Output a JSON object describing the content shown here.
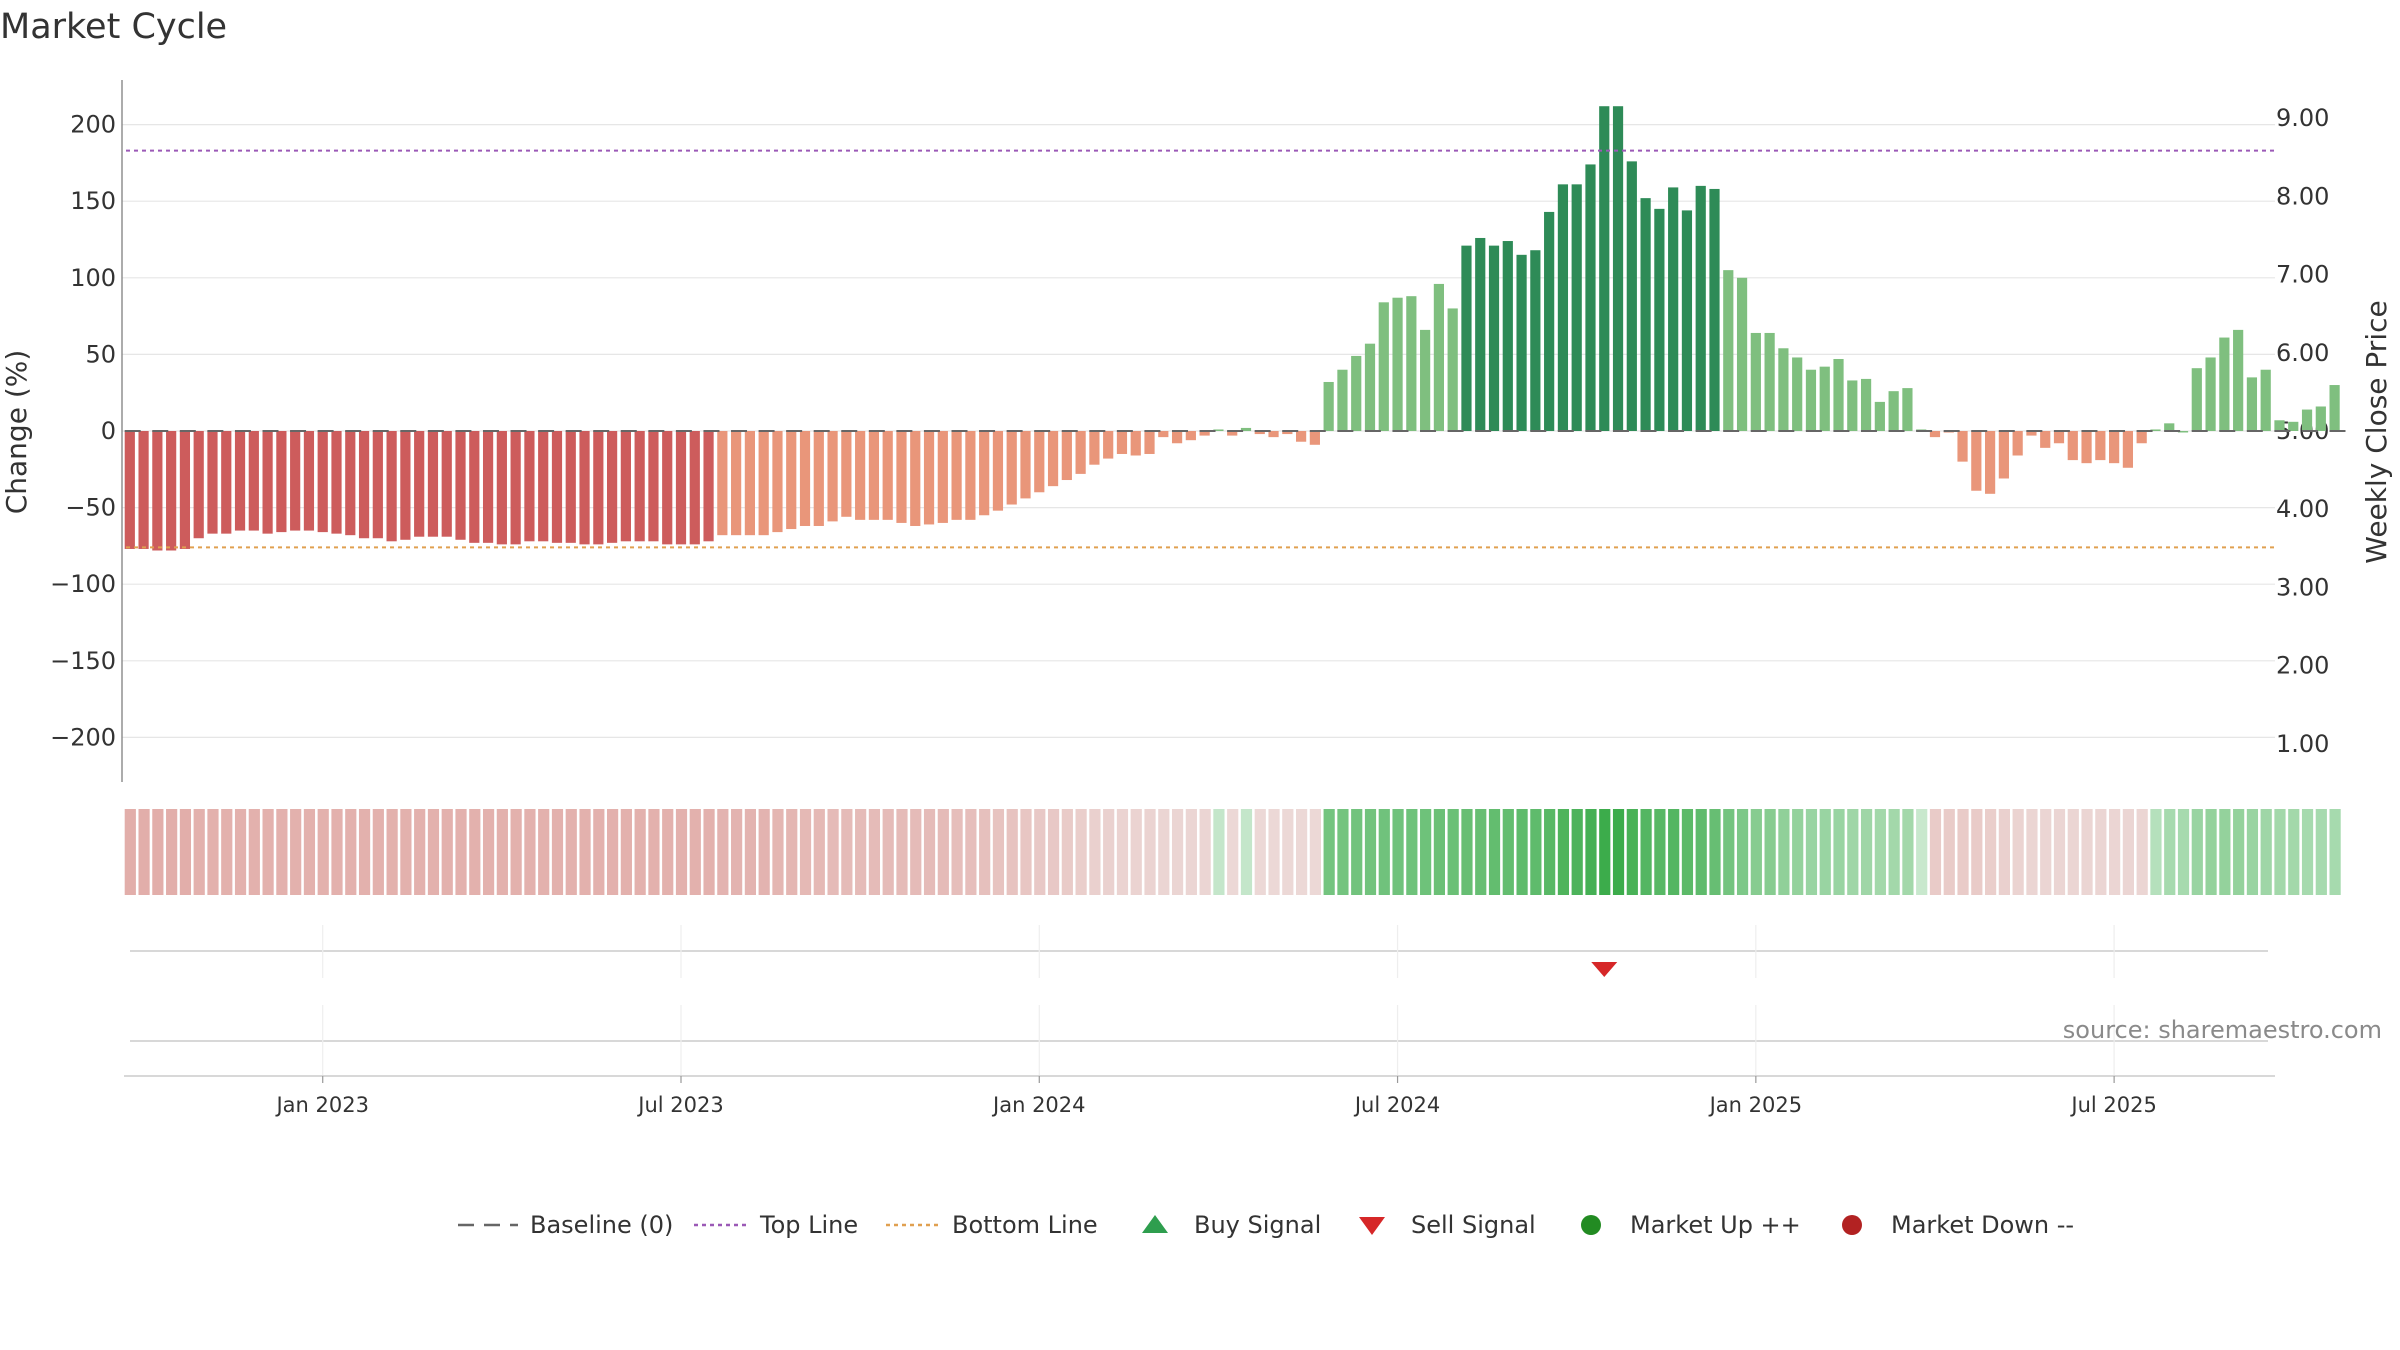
{
  "chart_data": {
    "type": "bar",
    "title": "Market Cycle",
    "ylabel_left": "Change (%)",
    "ylabel_right": "Weekly Close Price",
    "ylim_left": [
      -230,
      232
    ],
    "yticks_left": [
      {
        "v": 200,
        "t": "200"
      },
      {
        "v": 150,
        "t": "150"
      },
      {
        "v": 100,
        "t": "100"
      },
      {
        "v": 50,
        "t": "50"
      },
      {
        "v": 0,
        "t": "0"
      },
      {
        "v": -50,
        "t": "−50"
      },
      {
        "v": -100,
        "t": "−100"
      },
      {
        "v": -150,
        "t": "−150"
      },
      {
        "v": -200,
        "t": "−200"
      }
    ],
    "yticks_right": [
      {
        "v": 9,
        "t": "9.00"
      },
      {
        "v": 8,
        "t": "8.00"
      },
      {
        "v": 7,
        "t": "7.00"
      },
      {
        "v": 6,
        "t": "6.00"
      },
      {
        "v": 5,
        "t": "5.00"
      },
      {
        "v": 4,
        "t": "4.00"
      },
      {
        "v": 3,
        "t": "3.00"
      },
      {
        "v": 2,
        "t": "2.00"
      },
      {
        "v": 1,
        "t": "1.00"
      }
    ],
    "top_line": 183,
    "bottom_line": -76,
    "x_ticks": [
      {
        "index": 14,
        "label": "Jan 2023"
      },
      {
        "index": 40,
        "label": "Jul 2023"
      },
      {
        "index": 66,
        "label": "Jan 2024"
      },
      {
        "index": 92,
        "label": "Jul 2024"
      },
      {
        "index": 118,
        "label": "Jan 2025"
      },
      {
        "index": 144,
        "label": "Jul 2025"
      }
    ],
    "values": [
      -77,
      -77,
      -78,
      -78,
      -77,
      -70,
      -67,
      -67,
      -65,
      -65,
      -67,
      -66,
      -65,
      -65,
      -66,
      -67,
      -68,
      -70,
      -70,
      -72,
      -71,
      -69,
      -69,
      -69,
      -71,
      -73,
      -73,
      -74,
      -74,
      -72,
      -72,
      -73,
      -73,
      -74,
      -74,
      -73,
      -72,
      -72,
      -72,
      -74,
      -74,
      -74,
      -72,
      -68,
      -68,
      -68,
      -68,
      -66,
      -64,
      -62,
      -62,
      -59,
      -56,
      -58,
      -58,
      -58,
      -60,
      -62,
      -61,
      -60,
      -58,
      -58,
      -55,
      -52,
      -48,
      -44,
      -40,
      -36,
      -32,
      -28,
      -22,
      -18,
      -15,
      -16,
      -15,
      -4,
      -8,
      -6,
      -3,
      1,
      -3,
      2,
      -2,
      -4,
      -2,
      -7,
      -9,
      32,
      40,
      49,
      57,
      84,
      87,
      88,
      66,
      96,
      80,
      121,
      126,
      121,
      124,
      115,
      118,
      143,
      161,
      161,
      174,
      212,
      212,
      176,
      152,
      145,
      159,
      144,
      160,
      158,
      105,
      100,
      64,
      64,
      54,
      48,
      40,
      42,
      47,
      33,
      34,
      19,
      26,
      28,
      1,
      -4,
      -1,
      -20,
      -39,
      -41,
      -31,
      -16,
      -3,
      -11,
      -8,
      -19,
      -21,
      -19,
      -21,
      -24,
      -8,
      1,
      5,
      0,
      41,
      48,
      61,
      66,
      35,
      40,
      7,
      6,
      14,
      16,
      30
    ],
    "strength": [
      -0.52,
      -0.52,
      -0.52,
      -0.52,
      -0.52,
      -0.5,
      -0.5,
      -0.5,
      -0.5,
      -0.5,
      -0.5,
      -0.5,
      -0.5,
      -0.5,
      -0.5,
      -0.5,
      -0.5,
      -0.5,
      -0.5,
      -0.5,
      -0.5,
      -0.5,
      -0.5,
      -0.5,
      -0.5,
      -0.5,
      -0.5,
      -0.5,
      -0.5,
      -0.5,
      -0.5,
      -0.5,
      -0.5,
      -0.5,
      -0.5,
      -0.5,
      -0.5,
      -0.5,
      -0.5,
      -0.5,
      -0.5,
      -0.5,
      -0.5,
      -0.48,
      -0.48,
      -0.48,
      -0.48,
      -0.46,
      -0.46,
      -0.44,
      -0.44,
      -0.42,
      -0.42,
      -0.42,
      -0.42,
      -0.42,
      -0.42,
      -0.42,
      -0.42,
      -0.42,
      -0.4,
      -0.4,
      -0.38,
      -0.36,
      -0.36,
      -0.34,
      -0.32,
      -0.32,
      -0.3,
      -0.28,
      -0.26,
      -0.25,
      -0.24,
      -0.24,
      -0.24,
      -0.22,
      -0.22,
      -0.22,
      -0.22,
      0.12,
      -0.2,
      0.12,
      -0.2,
      -0.2,
      -0.2,
      -0.2,
      -0.2,
      0.55,
      0.55,
      0.56,
      0.56,
      0.57,
      0.57,
      0.58,
      0.58,
      0.6,
      0.6,
      0.62,
      0.62,
      0.64,
      0.64,
      0.66,
      0.66,
      0.7,
      0.75,
      0.76,
      0.8,
      0.85,
      0.85,
      0.78,
      0.72,
      0.7,
      0.72,
      0.68,
      0.66,
      0.62,
      0.55,
      0.5,
      0.45,
      0.45,
      0.4,
      0.38,
      0.35,
      0.35,
      0.35,
      0.32,
      0.32,
      0.3,
      0.3,
      0.3,
      0.1,
      -0.3,
      -0.3,
      -0.3,
      -0.3,
      -0.28,
      -0.26,
      -0.24,
      -0.22,
      -0.22,
      -0.22,
      -0.22,
      -0.22,
      -0.22,
      -0.22,
      -0.22,
      -0.22,
      0.2,
      0.28,
      0.28,
      0.35,
      0.38,
      0.38,
      0.38,
      0.35,
      0.32,
      0.3,
      0.3,
      0.28,
      0.28,
      0.28
    ],
    "signals": [
      {
        "type": "sell",
        "index": 107
      }
    ],
    "legend": [
      {
        "key": "baseline",
        "label": "Baseline (0)"
      },
      {
        "key": "top",
        "label": "Top Line"
      },
      {
        "key": "bottom",
        "label": "Bottom Line"
      },
      {
        "key": "buy",
        "label": "Buy Signal"
      },
      {
        "key": "sell",
        "label": "Sell Signal"
      },
      {
        "key": "up",
        "label": "Market Up ++"
      },
      {
        "key": "down",
        "label": "Market Down --"
      }
    ],
    "legend_position": "bottom-center",
    "grid": true
  },
  "source": "source: sharemaestro.com",
  "colors": {
    "up_dark": "#2e8b57",
    "up_light": "#7fbf7f",
    "down_dark": "#cd5c5c",
    "down_light": "#e9967a",
    "top_line": "#9b59b6",
    "bottom_line": "#e0a050",
    "buy": "#2e9e4e",
    "sell": "#d62728",
    "legend_up": "#228b22",
    "legend_down": "#b22222",
    "baseline": "#666666"
  }
}
